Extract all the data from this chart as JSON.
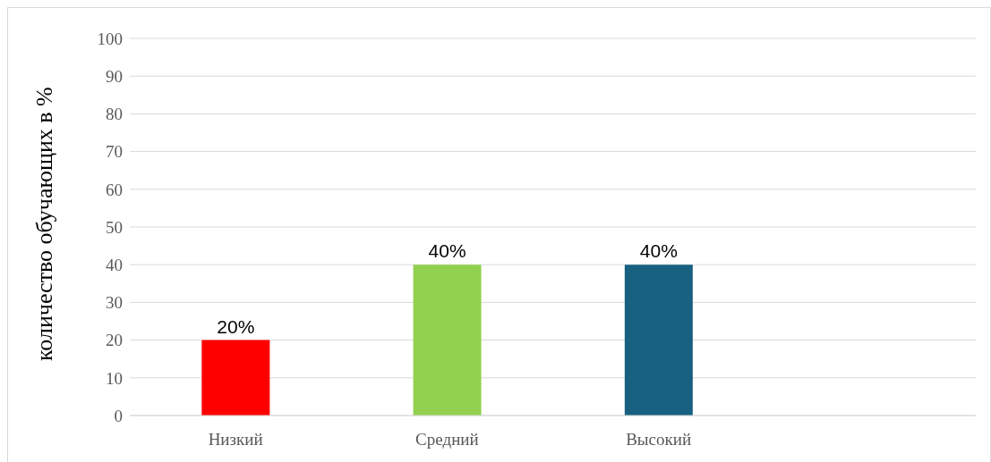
{
  "chart_data": {
    "type": "bar",
    "ylabel": "количество обучающих в %",
    "categories": [
      "Низкий",
      "Средний",
      "Высокий",
      null
    ],
    "values": [
      20,
      40,
      40,
      null
    ],
    "colors": [
      "#ff0000",
      "#92d050",
      "#17607f",
      "#000000"
    ],
    "value_labels": [
      "20%",
      "40%",
      "40%",
      null
    ],
    "ylim": [
      0,
      100
    ],
    "yticks": [
      0,
      10,
      20,
      30,
      40,
      50,
      60,
      70,
      80,
      90,
      100
    ],
    "grid": "y"
  }
}
